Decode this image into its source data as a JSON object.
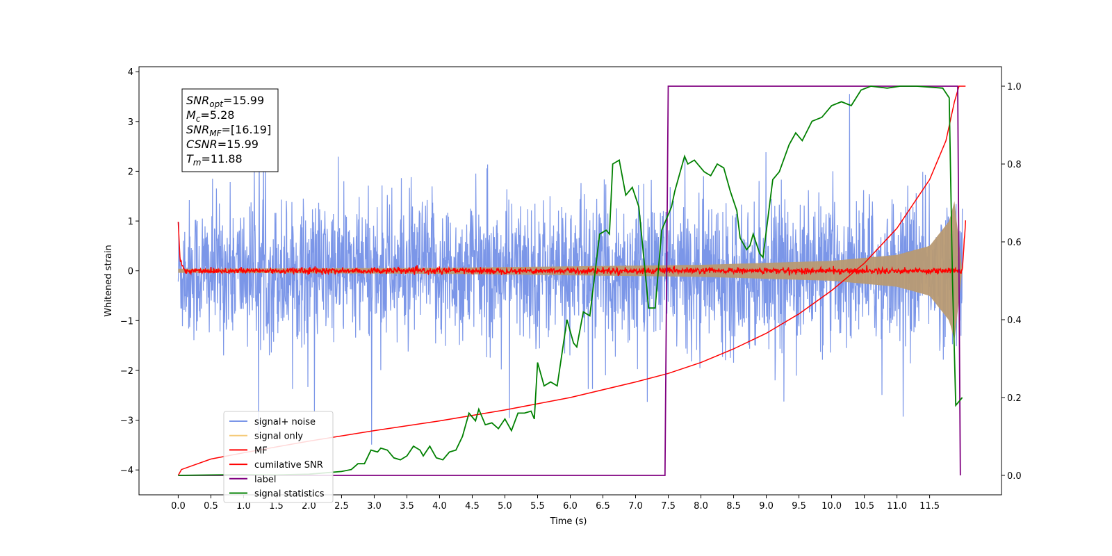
{
  "chart_data": {
    "type": "line",
    "xlabel": "Time (s)",
    "ylabel": "Whitened strain",
    "xlim": [
      -0.6,
      12.6
    ],
    "ylim": [
      -4.5,
      4.1
    ],
    "y2lim": [
      -0.05,
      1.05
    ],
    "x_ticks": [
      "0.0",
      "0.5",
      "1.0",
      "1.5",
      "2.0",
      "2.5",
      "3.0",
      "3.5",
      "4.0",
      "4.5",
      "5.0",
      "5.5",
      "6.0",
      "6.5",
      "7.0",
      "7.5",
      "8.0",
      "8.5",
      "9.0",
      "9.5",
      "10.0",
      "10.5",
      "11.0",
      "11.5"
    ],
    "y_ticks": [
      "−4",
      "−3",
      "−2",
      "−1",
      "0",
      "1",
      "2",
      "3",
      "4"
    ],
    "y2_ticks": [
      "0.0",
      "0.2",
      "0.4",
      "0.6",
      "0.8",
      "1.0"
    ],
    "info_box": [
      {
        "sym": "SNR",
        "sub": "opt",
        "val": "=15.99"
      },
      {
        "sym": "M",
        "sub": "c",
        "val": "=5.28"
      },
      {
        "sym": "SNR",
        "sub": "MF",
        "val": "=[16.19]"
      },
      {
        "sym": "CSNR",
        "sub": "",
        "val": "=15.99"
      },
      {
        "sym": "T",
        "sub": "m",
        "val": "=11.88"
      }
    ],
    "legend_position": "lower-left",
    "series": [
      {
        "name": "signal+ noise",
        "color": "#7b96e8",
        "axis": "left",
        "kind": "noise",
        "amplitude_std": 0.7,
        "t_range": [
          0,
          12
        ]
      },
      {
        "name": "signal only",
        "color": "#f5c977",
        "axis": "left",
        "kind": "chirp_envelope",
        "envelope": [
          [
            0,
            0.04
          ],
          [
            4,
            0.06
          ],
          [
            8,
            0.12
          ],
          [
            10,
            0.2
          ],
          [
            11,
            0.32
          ],
          [
            11.5,
            0.5
          ],
          [
            11.8,
            1.0
          ],
          [
            11.88,
            1.4
          ],
          [
            12,
            0.0
          ]
        ]
      },
      {
        "name": "MF",
        "color": "#ff0000",
        "axis": "left",
        "kind": "small_noise",
        "points": [
          [
            0,
            1.0
          ],
          [
            0.03,
            0.2
          ],
          [
            0.1,
            0.0
          ],
          [
            12.0,
            0.0
          ],
          [
            12.05,
            1.0
          ]
        ]
      },
      {
        "name": "cumilative SNR",
        "color": "#ff0000",
        "axis": "right",
        "points": [
          [
            0,
            0
          ],
          [
            0.05,
            0.015
          ],
          [
            0.5,
            0.042
          ],
          [
            1,
            0.058
          ],
          [
            2,
            0.088
          ],
          [
            3,
            0.115
          ],
          [
            4,
            0.14
          ],
          [
            5,
            0.168
          ],
          [
            6,
            0.2
          ],
          [
            7,
            0.24
          ],
          [
            7.5,
            0.262
          ],
          [
            8,
            0.29
          ],
          [
            8.5,
            0.325
          ],
          [
            9,
            0.365
          ],
          [
            9.5,
            0.415
          ],
          [
            10,
            0.475
          ],
          [
            10.5,
            0.545
          ],
          [
            11,
            0.635
          ],
          [
            11.5,
            0.76
          ],
          [
            11.75,
            0.86
          ],
          [
            11.88,
            0.96
          ],
          [
            11.95,
            1.0
          ],
          [
            12.05,
            1.0
          ]
        ]
      },
      {
        "name": "label",
        "color": "#800080",
        "axis": "right",
        "points": [
          [
            0,
            0
          ],
          [
            7.45,
            0
          ],
          [
            7.5,
            1.0
          ],
          [
            11.93,
            1.0
          ],
          [
            11.97,
            0.0
          ]
        ]
      },
      {
        "name": "signal statistics",
        "color": "#008000",
        "axis": "right",
        "points": [
          [
            0,
            0
          ],
          [
            0.5,
            0.001
          ],
          [
            1.0,
            0.002
          ],
          [
            1.5,
            0.001
          ],
          [
            2.0,
            0.003
          ],
          [
            2.5,
            0.01
          ],
          [
            2.65,
            0.015
          ],
          [
            2.75,
            0.03
          ],
          [
            2.85,
            0.03
          ],
          [
            2.95,
            0.065
          ],
          [
            3.05,
            0.06
          ],
          [
            3.1,
            0.07
          ],
          [
            3.2,
            0.065
          ],
          [
            3.3,
            0.045
          ],
          [
            3.4,
            0.04
          ],
          [
            3.5,
            0.05
          ],
          [
            3.6,
            0.075
          ],
          [
            3.7,
            0.065
          ],
          [
            3.75,
            0.05
          ],
          [
            3.85,
            0.075
          ],
          [
            3.95,
            0.045
          ],
          [
            4.05,
            0.04
          ],
          [
            4.15,
            0.06
          ],
          [
            4.25,
            0.065
          ],
          [
            4.35,
            0.1
          ],
          [
            4.45,
            0.16
          ],
          [
            4.55,
            0.14
          ],
          [
            4.6,
            0.17
          ],
          [
            4.7,
            0.13
          ],
          [
            4.8,
            0.135
          ],
          [
            4.9,
            0.12
          ],
          [
            5.0,
            0.145
          ],
          [
            5.1,
            0.115
          ],
          [
            5.2,
            0.16
          ],
          [
            5.3,
            0.16
          ],
          [
            5.4,
            0.165
          ],
          [
            5.45,
            0.145
          ],
          [
            5.5,
            0.29
          ],
          [
            5.6,
            0.23
          ],
          [
            5.7,
            0.24
          ],
          [
            5.8,
            0.23
          ],
          [
            5.95,
            0.4
          ],
          [
            6.05,
            0.34
          ],
          [
            6.1,
            0.33
          ],
          [
            6.2,
            0.42
          ],
          [
            6.3,
            0.41
          ],
          [
            6.45,
            0.62
          ],
          [
            6.55,
            0.63
          ],
          [
            6.6,
            0.62
          ],
          [
            6.65,
            0.8
          ],
          [
            6.75,
            0.81
          ],
          [
            6.85,
            0.72
          ],
          [
            6.95,
            0.74
          ],
          [
            7.05,
            0.69
          ],
          [
            7.2,
            0.43
          ],
          [
            7.3,
            0.43
          ],
          [
            7.4,
            0.63
          ],
          [
            7.55,
            0.69
          ],
          [
            7.6,
            0.73
          ],
          [
            7.75,
            0.82
          ],
          [
            7.8,
            0.8
          ],
          [
            7.9,
            0.81
          ],
          [
            8.05,
            0.78
          ],
          [
            8.15,
            0.77
          ],
          [
            8.25,
            0.8
          ],
          [
            8.35,
            0.79
          ],
          [
            8.45,
            0.73
          ],
          [
            8.55,
            0.68
          ],
          [
            8.6,
            0.61
          ],
          [
            8.7,
            0.58
          ],
          [
            8.75,
            0.59
          ],
          [
            8.8,
            0.62
          ],
          [
            8.9,
            0.57
          ],
          [
            8.95,
            0.56
          ],
          [
            9.1,
            0.76
          ],
          [
            9.2,
            0.78
          ],
          [
            9.35,
            0.85
          ],
          [
            9.45,
            0.88
          ],
          [
            9.55,
            0.86
          ],
          [
            9.7,
            0.91
          ],
          [
            9.85,
            0.92
          ],
          [
            10.0,
            0.95
          ],
          [
            10.15,
            0.96
          ],
          [
            10.3,
            0.95
          ],
          [
            10.45,
            0.99
          ],
          [
            10.6,
            1.0
          ],
          [
            10.85,
            0.995
          ],
          [
            11.05,
            1.0
          ],
          [
            11.3,
            1.0
          ],
          [
            11.55,
            0.997
          ],
          [
            11.7,
            0.995
          ],
          [
            11.8,
            0.97
          ],
          [
            11.85,
            0.5
          ],
          [
            11.9,
            0.18
          ],
          [
            12.0,
            0.2
          ]
        ]
      }
    ]
  }
}
